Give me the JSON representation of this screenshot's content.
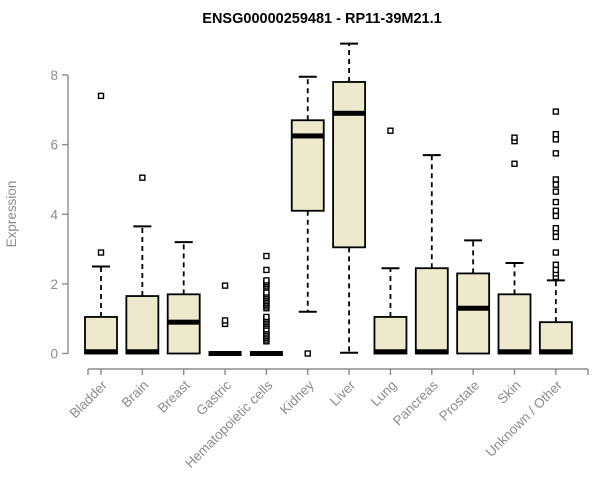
{
  "title": "ENSG00000259481 - RP11-39M21.1",
  "chart_data": {
    "type": "boxplot",
    "title": "ENSG00000259481 - RP11-39M21.1",
    "xlabel": "",
    "ylabel": "Expression",
    "ylim": [
      0,
      8
    ],
    "yticks": [
      0,
      2,
      4,
      6,
      8
    ],
    "grid": false,
    "legend": "none",
    "box_fill_color": "#ede9cc",
    "box_stroke_color": "#000000",
    "axis_color": "#8c8c8c",
    "categories": [
      "Bladder",
      "Brain",
      "Breast",
      "Gastric",
      "Hematopoietic cells",
      "Kidney",
      "Liver",
      "Lung",
      "Pancreas",
      "Prostate",
      "Skin",
      "Unknown / Other"
    ],
    "boxes": [
      {
        "category": "Bladder",
        "whisker_low": 0,
        "q1": 0,
        "median": 0.05,
        "q3": 1.05,
        "whisker_high": 2.5,
        "outliers": [
          2.9,
          7.4
        ]
      },
      {
        "category": "Brain",
        "whisker_low": 0,
        "q1": 0,
        "median": 0.05,
        "q3": 1.65,
        "whisker_high": 3.65,
        "outliers": [
          5.05
        ]
      },
      {
        "category": "Breast",
        "whisker_low": 0,
        "q1": 0,
        "median": 0.9,
        "q3": 1.7,
        "whisker_high": 3.2,
        "outliers": []
      },
      {
        "category": "Gastric",
        "whisker_low": 0,
        "q1": 0,
        "median": 0,
        "q3": 0,
        "whisker_high": 0,
        "outliers": [
          0.85,
          0.95,
          1.95
        ]
      },
      {
        "category": "Hematopoietic cells",
        "whisker_low": 0,
        "q1": 0,
        "median": 0,
        "q3": 0,
        "whisker_high": 0,
        "outliers": [
          0.35,
          0.4,
          0.45,
          0.5,
          0.55,
          0.6,
          0.65,
          0.7,
          0.8,
          0.85,
          0.9,
          0.95,
          1.0,
          1.05,
          1.3,
          1.35,
          1.4,
          1.45,
          1.5,
          1.55,
          1.6,
          1.65,
          1.7,
          1.75,
          1.9,
          1.95,
          2.0,
          2.05,
          2.1,
          2.4,
          2.8
        ]
      },
      {
        "category": "Kidney",
        "whisker_low": 1.2,
        "q1": 4.1,
        "median": 6.25,
        "q3": 6.7,
        "whisker_high": 7.95,
        "outliers": [
          0
        ]
      },
      {
        "category": "Liver",
        "whisker_low": 0.02,
        "q1": 3.05,
        "median": 6.9,
        "q3": 7.8,
        "whisker_high": 8.9,
        "outliers": []
      },
      {
        "category": "Lung",
        "whisker_low": 0,
        "q1": 0,
        "median": 0.05,
        "q3": 1.05,
        "whisker_high": 2.45,
        "outliers": [
          6.4
        ]
      },
      {
        "category": "Pancreas",
        "whisker_low": 0,
        "q1": 0,
        "median": 0.05,
        "q3": 2.45,
        "whisker_high": 5.7,
        "outliers": []
      },
      {
        "category": "Prostate",
        "whisker_low": 0,
        "q1": 0,
        "median": 1.3,
        "q3": 2.3,
        "whisker_high": 3.25,
        "outliers": []
      },
      {
        "category": "Skin",
        "whisker_low": 0,
        "q1": 0,
        "median": 0.05,
        "q3": 1.7,
        "whisker_high": 2.6,
        "outliers": [
          5.45,
          6.1,
          6.2
        ]
      },
      {
        "category": "Unknown / Other",
        "whisker_low": 0,
        "q1": 0,
        "median": 0.05,
        "q3": 0.9,
        "whisker_high": 2.1,
        "outliers": [
          2.2,
          2.3,
          2.4,
          2.55,
          2.9,
          3.35,
          3.5,
          3.6,
          3.95,
          4.1,
          4.35,
          4.65,
          4.85,
          5.0,
          5.75,
          6.15,
          6.3,
          6.95
        ]
      }
    ]
  }
}
